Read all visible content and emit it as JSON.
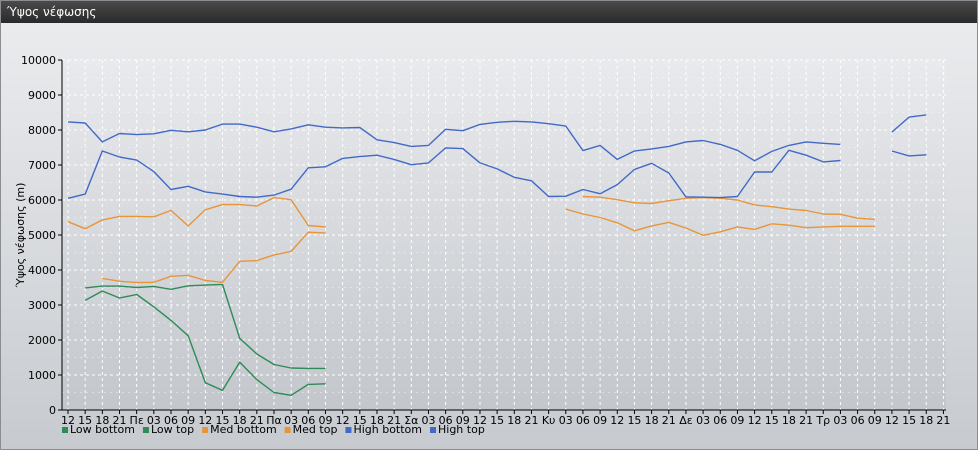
{
  "window": {
    "title": "Ύψος νέφωσης"
  },
  "chart_data": {
    "type": "line",
    "ylabel": "Ύψος νέφωσης (m)",
    "ylim": [
      0,
      10000
    ],
    "yticks": [
      0,
      1000,
      2000,
      3000,
      4000,
      5000,
      6000,
      7000,
      8000,
      9000,
      10000
    ],
    "grid": true,
    "legend_position": "bottom-left",
    "x_labels": [
      "12",
      "15",
      "18",
      "21",
      "Πε",
      "03",
      "06",
      "09",
      "12",
      "15",
      "18",
      "21",
      "Πα",
      "03",
      "06",
      "09",
      "12",
      "15",
      "18",
      "21",
      "Σα",
      "03",
      "06",
      "09",
      "12",
      "15",
      "18",
      "21",
      "Κυ",
      "03",
      "06",
      "09",
      "12",
      "15",
      "18",
      "21",
      "Δε",
      "03",
      "06",
      "09",
      "12",
      "15",
      "18",
      "21",
      "Τρ",
      "03",
      "06",
      "09",
      "12",
      "15",
      "18",
      "21"
    ],
    "series": [
      {
        "name": "Low bottom",
        "color": "#2e8b57",
        "values": [
          null,
          3130,
          3400,
          3200,
          3300,
          2950,
          2560,
          2120,
          780,
          560,
          1370,
          870,
          500,
          420,
          730,
          750,
          null,
          null,
          null,
          null,
          null,
          null,
          null,
          null,
          null,
          null,
          null,
          null,
          null,
          null,
          null,
          null,
          null,
          null,
          null,
          null,
          null,
          null,
          null,
          null,
          null,
          null,
          null,
          null,
          null,
          null,
          null,
          null,
          null,
          null,
          null,
          null
        ]
      },
      {
        "name": "Low top",
        "color": "#2e8b57",
        "values": [
          null,
          3490,
          3540,
          3540,
          3500,
          3530,
          3450,
          3550,
          3570,
          3590,
          2050,
          1600,
          1300,
          1200,
          1190,
          1190,
          null,
          null,
          null,
          null,
          null,
          null,
          null,
          null,
          null,
          null,
          null,
          null,
          null,
          null,
          null,
          null,
          null,
          null,
          null,
          null,
          null,
          null,
          null,
          null,
          null,
          null,
          null,
          null,
          null,
          null,
          null,
          null,
          null,
          null,
          null,
          null
        ]
      },
      {
        "name": "Med bottom",
        "color": "#e8953a",
        "values": [
          null,
          null,
          3760,
          3680,
          3640,
          3650,
          3820,
          3850,
          3700,
          3650,
          4250,
          4270,
          4430,
          4530,
          5080,
          5060,
          null,
          null,
          null,
          null,
          null,
          null,
          null,
          null,
          null,
          null,
          null,
          null,
          null,
          5740,
          5600,
          5500,
          5350,
          5120,
          5260,
          5360,
          5200,
          4990,
          5090,
          5230,
          5160,
          5320,
          5280,
          5210,
          5230,
          5250,
          5250,
          5250,
          null,
          null,
          null,
          null
        ]
      },
      {
        "name": "Med top",
        "color": "#e8953a",
        "values": [
          5380,
          5180,
          5430,
          5530,
          5530,
          5520,
          5700,
          5260,
          5720,
          5870,
          5870,
          5830,
          6070,
          6010,
          5270,
          5230,
          null,
          null,
          null,
          null,
          null,
          null,
          null,
          null,
          null,
          null,
          null,
          null,
          null,
          null,
          6100,
          6080,
          6010,
          5920,
          5900,
          5980,
          6050,
          6070,
          6050,
          6000,
          5860,
          5810,
          5740,
          5700,
          5600,
          5590,
          5480,
          5450,
          null,
          null,
          null,
          null
        ]
      },
      {
        "name": "High bottom",
        "color": "#4169c8",
        "values": [
          6050,
          6170,
          7400,
          7230,
          7140,
          6810,
          6300,
          6390,
          6230,
          6170,
          6100,
          6080,
          6140,
          6310,
          6920,
          6950,
          7190,
          7240,
          7280,
          7160,
          7010,
          7060,
          7490,
          7470,
          7060,
          6890,
          6650,
          6550,
          6100,
          6110,
          6300,
          6180,
          6440,
          6870,
          7050,
          6770,
          6090,
          6080,
          6070,
          6100,
          6800,
          6800,
          7420,
          7280,
          7090,
          7130,
          null,
          null,
          7400,
          7260,
          7290,
          null
        ]
      },
      {
        "name": "High top",
        "color": "#4169c8",
        "values": [
          8230,
          8200,
          7660,
          7900,
          7870,
          7890,
          7990,
          7950,
          8000,
          8170,
          8170,
          8080,
          7950,
          8030,
          8150,
          8080,
          8060,
          8070,
          7720,
          7640,
          7530,
          7560,
          8020,
          7980,
          8160,
          8220,
          8250,
          8230,
          8180,
          8110,
          7410,
          7560,
          7160,
          7400,
          7460,
          7530,
          7660,
          7700,
          7590,
          7420,
          7120,
          7390,
          7560,
          7660,
          7620,
          7590,
          null,
          null,
          7940,
          8370,
          8430,
          null
        ]
      }
    ]
  }
}
